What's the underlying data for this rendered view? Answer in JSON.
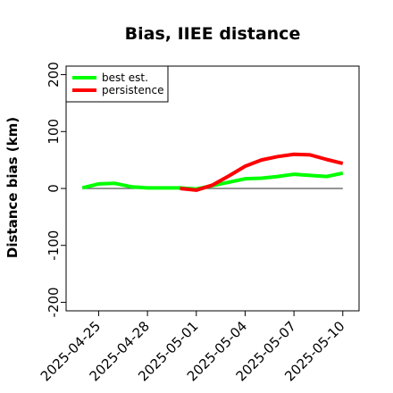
{
  "chart_data": {
    "type": "line",
    "title": "Bias, IIEE distance",
    "xlabel": "",
    "ylabel": "Distance bias (km)",
    "xlim": [
      "2025-04-23",
      "2025-05-11"
    ],
    "ylim": [
      -215,
      215
    ],
    "yticks": [
      -200,
      -100,
      0,
      100,
      200
    ],
    "xticks": [
      "2025-04-25",
      "2025-04-28",
      "2025-05-01",
      "2025-05-04",
      "2025-05-07",
      "2025-05-10"
    ],
    "legend_position": "top-left",
    "reference_line": {
      "y": 0,
      "x_start": "2025-04-24",
      "x_end": "2025-05-10",
      "color": "#555555"
    },
    "series": [
      {
        "name": "best est.",
        "color": "#00ff00",
        "points": [
          [
            "2025-04-24",
            1
          ],
          [
            "2025-04-25",
            8
          ],
          [
            "2025-04-26",
            9
          ],
          [
            "2025-04-27",
            3
          ],
          [
            "2025-04-28",
            1
          ],
          [
            "2025-04-29",
            1
          ],
          [
            "2025-04-30",
            1
          ],
          [
            "2025-05-01",
            -1
          ],
          [
            "2025-05-02",
            5
          ],
          [
            "2025-05-03",
            11
          ],
          [
            "2025-05-04",
            17
          ],
          [
            "2025-05-05",
            18
          ],
          [
            "2025-05-06",
            21
          ],
          [
            "2025-05-07",
            25
          ],
          [
            "2025-05-08",
            23
          ],
          [
            "2025-05-09",
            21
          ],
          [
            "2025-05-10",
            27
          ]
        ]
      },
      {
        "name": "persistence",
        "color": "#ff0000",
        "points": [
          [
            "2025-04-30",
            0
          ],
          [
            "2025-05-01",
            -3
          ],
          [
            "2025-05-02",
            6
          ],
          [
            "2025-05-03",
            22
          ],
          [
            "2025-05-04",
            39
          ],
          [
            "2025-05-05",
            50
          ],
          [
            "2025-05-06",
            56
          ],
          [
            "2025-05-07",
            60
          ],
          [
            "2025-05-08",
            59
          ],
          [
            "2025-05-09",
            51
          ],
          [
            "2025-05-10",
            44
          ]
        ]
      }
    ]
  }
}
